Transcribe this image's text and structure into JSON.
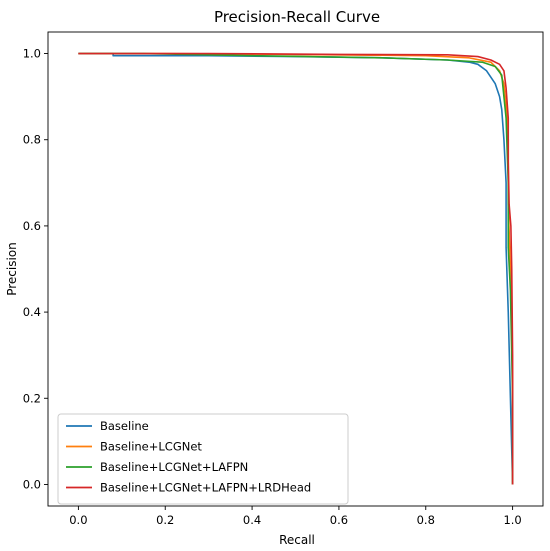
{
  "chart_data": {
    "type": "line",
    "title": "Precision-Recall Curve",
    "xlabel": "Recall",
    "ylabel": "Precision",
    "xlim": [
      -0.07,
      1.07
    ],
    "ylim": [
      -0.05,
      1.05
    ],
    "xticks": [
      "0.0",
      "0.2",
      "0.4",
      "0.6",
      "0.8",
      "1.0"
    ],
    "yticks": [
      "0.0",
      "0.2",
      "0.4",
      "0.6",
      "0.8",
      "1.0"
    ],
    "legend_position": "lower-left",
    "grid": false,
    "series": [
      {
        "name": "Baseline",
        "color": "#1f77b4",
        "points": [
          [
            0.0,
            1.0
          ],
          [
            0.08,
            1.0
          ],
          [
            0.08,
            0.995
          ],
          [
            0.3,
            0.995
          ],
          [
            0.5,
            0.993
          ],
          [
            0.7,
            0.99
          ],
          [
            0.85,
            0.985
          ],
          [
            0.9,
            0.98
          ],
          [
            0.92,
            0.975
          ],
          [
            0.94,
            0.96
          ],
          [
            0.96,
            0.93
          ],
          [
            0.97,
            0.9
          ],
          [
            0.975,
            0.87
          ],
          [
            0.98,
            0.8
          ],
          [
            0.985,
            0.7
          ],
          [
            0.985,
            0.55
          ],
          [
            0.99,
            0.4
          ],
          [
            0.995,
            0.2
          ],
          [
            1.0,
            0.0
          ]
        ]
      },
      {
        "name": "Baseline+LCGNet",
        "color": "#ff7f0e",
        "points": [
          [
            0.0,
            1.0
          ],
          [
            0.2,
            1.0
          ],
          [
            0.5,
            0.998
          ],
          [
            0.8,
            0.995
          ],
          [
            0.9,
            0.99
          ],
          [
            0.95,
            0.98
          ],
          [
            0.97,
            0.96
          ],
          [
            0.98,
            0.93
          ],
          [
            0.985,
            0.88
          ],
          [
            0.99,
            0.8
          ],
          [
            0.99,
            0.65
          ],
          [
            0.995,
            0.5
          ],
          [
            1.0,
            0.25
          ],
          [
            1.0,
            0.0
          ]
        ]
      },
      {
        "name": "Baseline+LCGNet+LAFPN",
        "color": "#2ca02c",
        "points": [
          [
            0.0,
            1.0
          ],
          [
            0.15,
            1.0
          ],
          [
            0.4,
            0.995
          ],
          [
            0.7,
            0.99
          ],
          [
            0.85,
            0.985
          ],
          [
            0.93,
            0.98
          ],
          [
            0.96,
            0.97
          ],
          [
            0.975,
            0.95
          ],
          [
            0.98,
            0.9
          ],
          [
            0.985,
            0.85
          ],
          [
            0.99,
            0.7
          ],
          [
            0.99,
            0.55
          ],
          [
            0.995,
            0.45
          ],
          [
            1.0,
            0.2
          ],
          [
            1.0,
            0.0
          ]
        ]
      },
      {
        "name": "Baseline+LCGNet+LAFPN+LRDHead",
        "color": "#d62728",
        "points": [
          [
            0.0,
            1.0
          ],
          [
            0.3,
            1.0
          ],
          [
            0.6,
            0.998
          ],
          [
            0.85,
            0.997
          ],
          [
            0.92,
            0.993
          ],
          [
            0.95,
            0.985
          ],
          [
            0.97,
            0.975
          ],
          [
            0.98,
            0.96
          ],
          [
            0.985,
            0.92
          ],
          [
            0.99,
            0.85
          ],
          [
            0.99,
            0.75
          ],
          [
            0.992,
            0.65
          ],
          [
            0.996,
            0.6
          ],
          [
            0.998,
            0.5
          ],
          [
            1.0,
            0.3
          ],
          [
            1.0,
            0.0
          ]
        ]
      }
    ]
  }
}
